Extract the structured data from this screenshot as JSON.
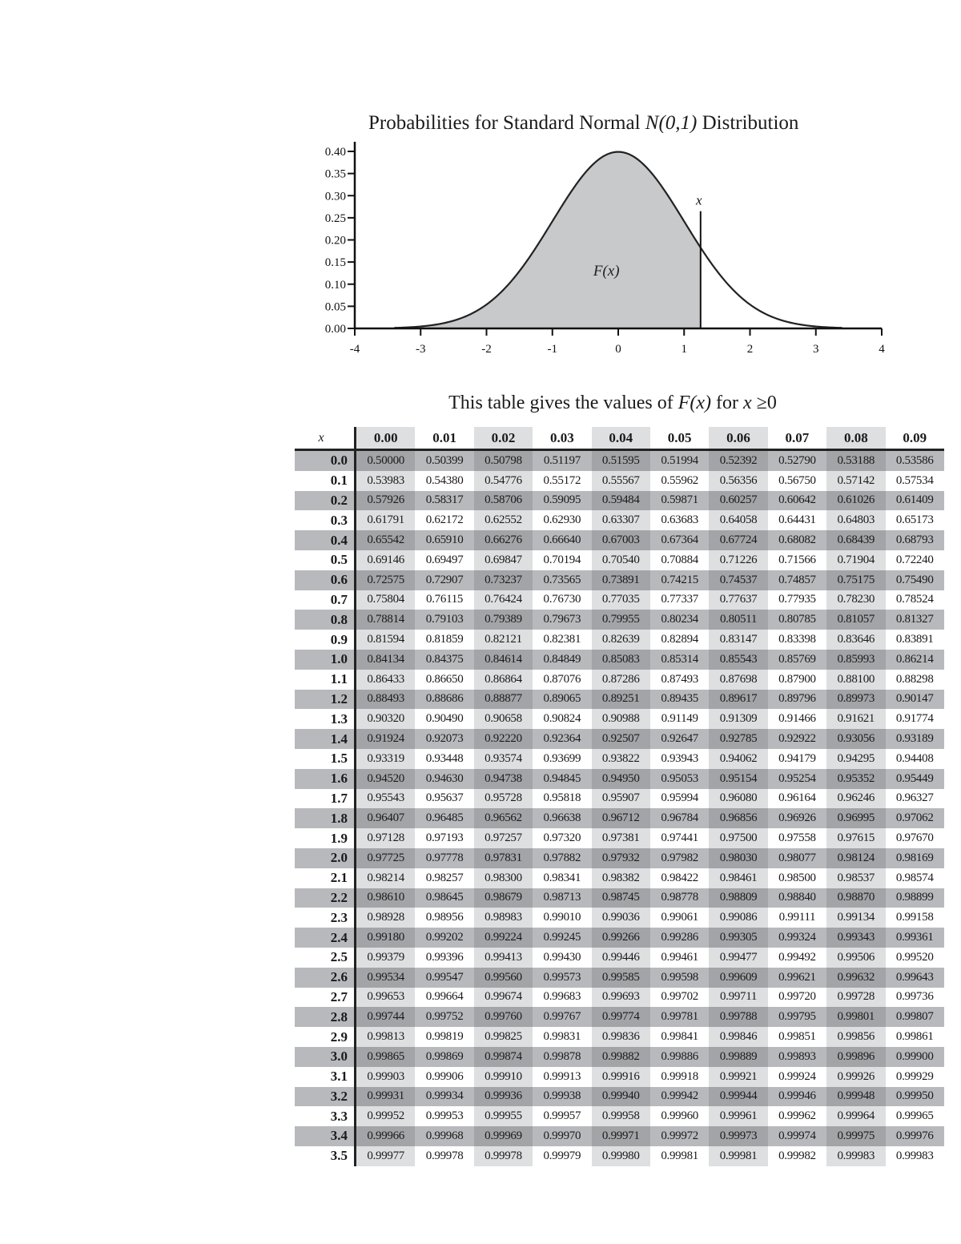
{
  "chart_data": {
    "type": "area",
    "title": "Probabilities for Standard Normal N(0,1) Distribution",
    "title_plain": "Probabilities for Standard Normal ",
    "title_italic": "N(0,1)",
    "title_suffix": " Distribution",
    "xlabel": "",
    "ylabel": "",
    "xlim": [
      -4,
      4
    ],
    "ylim": [
      0,
      0.4
    ],
    "x_ticks": [
      "-4",
      "-3",
      "-2",
      "-1",
      "0",
      "1",
      "2",
      "3",
      "4"
    ],
    "y_ticks": [
      "0.00",
      "0.05",
      "0.10",
      "0.15",
      "0.20",
      "0.25",
      "0.30",
      "0.35",
      "0.40"
    ],
    "curve": "standard normal density",
    "shaded_region": {
      "from": -4,
      "to": 1.25,
      "label": "F(x)"
    },
    "marker": {
      "x": 1.25,
      "label": "x"
    },
    "colors": {
      "fill": "#c8c9cb",
      "curve": "#222222"
    }
  },
  "table": {
    "title_prefix": "This table gives the values of ",
    "title_fx": "F(x)",
    "title_for": " for ",
    "title_x": "x",
    "title_suffix": " ≥0",
    "corner_label": "x",
    "columns": [
      "0.00",
      "0.01",
      "0.02",
      "0.03",
      "0.04",
      "0.05",
      "0.06",
      "0.07",
      "0.08",
      "0.09"
    ],
    "rows": [
      {
        "x": "0.0",
        "v": [
          "0.50000",
          "0.50399",
          "0.50798",
          "0.51197",
          "0.51595",
          "0.51994",
          "0.52392",
          "0.52790",
          "0.53188",
          "0.53586"
        ]
      },
      {
        "x": "0.1",
        "v": [
          "0.53983",
          "0.54380",
          "0.54776",
          "0.55172",
          "0.55567",
          "0.55962",
          "0.56356",
          "0.56750",
          "0.57142",
          "0.57534"
        ]
      },
      {
        "x": "0.2",
        "v": [
          "0.57926",
          "0.58317",
          "0.58706",
          "0.59095",
          "0.59484",
          "0.59871",
          "0.60257",
          "0.60642",
          "0.61026",
          "0.61409"
        ]
      },
      {
        "x": "0.3",
        "v": [
          "0.61791",
          "0.62172",
          "0.62552",
          "0.62930",
          "0.63307",
          "0.63683",
          "0.64058",
          "0.64431",
          "0.64803",
          "0.65173"
        ]
      },
      {
        "x": "0.4",
        "v": [
          "0.65542",
          "0.65910",
          "0.66276",
          "0.66640",
          "0.67003",
          "0.67364",
          "0.67724",
          "0.68082",
          "0.68439",
          "0.68793"
        ]
      },
      {
        "x": "0.5",
        "v": [
          "0.69146",
          "0.69497",
          "0.69847",
          "0.70194",
          "0.70540",
          "0.70884",
          "0.71226",
          "0.71566",
          "0.71904",
          "0.72240"
        ]
      },
      {
        "x": "0.6",
        "v": [
          "0.72575",
          "0.72907",
          "0.73237",
          "0.73565",
          "0.73891",
          "0.74215",
          "0.74537",
          "0.74857",
          "0.75175",
          "0.75490"
        ]
      },
      {
        "x": "0.7",
        "v": [
          "0.75804",
          "0.76115",
          "0.76424",
          "0.76730",
          "0.77035",
          "0.77337",
          "0.77637",
          "0.77935",
          "0.78230",
          "0.78524"
        ]
      },
      {
        "x": "0.8",
        "v": [
          "0.78814",
          "0.79103",
          "0.79389",
          "0.79673",
          "0.79955",
          "0.80234",
          "0.80511",
          "0.80785",
          "0.81057",
          "0.81327"
        ]
      },
      {
        "x": "0.9",
        "v": [
          "0.81594",
          "0.81859",
          "0.82121",
          "0.82381",
          "0.82639",
          "0.82894",
          "0.83147",
          "0.83398",
          "0.83646",
          "0.83891"
        ]
      },
      {
        "x": "1.0",
        "v": [
          "0.84134",
          "0.84375",
          "0.84614",
          "0.84849",
          "0.85083",
          "0.85314",
          "0.85543",
          "0.85769",
          "0.85993",
          "0.86214"
        ]
      },
      {
        "x": "1.1",
        "v": [
          "0.86433",
          "0.86650",
          "0.86864",
          "0.87076",
          "0.87286",
          "0.87493",
          "0.87698",
          "0.87900",
          "0.88100",
          "0.88298"
        ]
      },
      {
        "x": "1.2",
        "v": [
          "0.88493",
          "0.88686",
          "0.88877",
          "0.89065",
          "0.89251",
          "0.89435",
          "0.89617",
          "0.89796",
          "0.89973",
          "0.90147"
        ]
      },
      {
        "x": "1.3",
        "v": [
          "0.90320",
          "0.90490",
          "0.90658",
          "0.90824",
          "0.90988",
          "0.91149",
          "0.91309",
          "0.91466",
          "0.91621",
          "0.91774"
        ]
      },
      {
        "x": "1.4",
        "v": [
          "0.91924",
          "0.92073",
          "0.92220",
          "0.92364",
          "0.92507",
          "0.92647",
          "0.92785",
          "0.92922",
          "0.93056",
          "0.93189"
        ]
      },
      {
        "x": "1.5",
        "v": [
          "0.93319",
          "0.93448",
          "0.93574",
          "0.93699",
          "0.93822",
          "0.93943",
          "0.94062",
          "0.94179",
          "0.94295",
          "0.94408"
        ]
      },
      {
        "x": "1.6",
        "v": [
          "0.94520",
          "0.94630",
          "0.94738",
          "0.94845",
          "0.94950",
          "0.95053",
          "0.95154",
          "0.95254",
          "0.95352",
          "0.95449"
        ]
      },
      {
        "x": "1.7",
        "v": [
          "0.95543",
          "0.95637",
          "0.95728",
          "0.95818",
          "0.95907",
          "0.95994",
          "0.96080",
          "0.96164",
          "0.96246",
          "0.96327"
        ]
      },
      {
        "x": "1.8",
        "v": [
          "0.96407",
          "0.96485",
          "0.96562",
          "0.96638",
          "0.96712",
          "0.96784",
          "0.96856",
          "0.96926",
          "0.96995",
          "0.97062"
        ]
      },
      {
        "x": "1.9",
        "v": [
          "0.97128",
          "0.97193",
          "0.97257",
          "0.97320",
          "0.97381",
          "0.97441",
          "0.97500",
          "0.97558",
          "0.97615",
          "0.97670"
        ]
      },
      {
        "x": "2.0",
        "v": [
          "0.97725",
          "0.97778",
          "0.97831",
          "0.97882",
          "0.97932",
          "0.97982",
          "0.98030",
          "0.98077",
          "0.98124",
          "0.98169"
        ]
      },
      {
        "x": "2.1",
        "v": [
          "0.98214",
          "0.98257",
          "0.98300",
          "0.98341",
          "0.98382",
          "0.98422",
          "0.98461",
          "0.98500",
          "0.98537",
          "0.98574"
        ]
      },
      {
        "x": "2.2",
        "v": [
          "0.98610",
          "0.98645",
          "0.98679",
          "0.98713",
          "0.98745",
          "0.98778",
          "0.98809",
          "0.98840",
          "0.98870",
          "0.98899"
        ]
      },
      {
        "x": "2.3",
        "v": [
          "0.98928",
          "0.98956",
          "0.98983",
          "0.99010",
          "0.99036",
          "0.99061",
          "0.99086",
          "0.99111",
          "0.99134",
          "0.99158"
        ]
      },
      {
        "x": "2.4",
        "v": [
          "0.99180",
          "0.99202",
          "0.99224",
          "0.99245",
          "0.99266",
          "0.99286",
          "0.99305",
          "0.99324",
          "0.99343",
          "0.99361"
        ]
      },
      {
        "x": "2.5",
        "v": [
          "0.99379",
          "0.99396",
          "0.99413",
          "0.99430",
          "0.99446",
          "0.99461",
          "0.99477",
          "0.99492",
          "0.99506",
          "0.99520"
        ]
      },
      {
        "x": "2.6",
        "v": [
          "0.99534",
          "0.99547",
          "0.99560",
          "0.99573",
          "0.99585",
          "0.99598",
          "0.99609",
          "0.99621",
          "0.99632",
          "0.99643"
        ]
      },
      {
        "x": "2.7",
        "v": [
          "0.99653",
          "0.99664",
          "0.99674",
          "0.99683",
          "0.99693",
          "0.99702",
          "0.99711",
          "0.99720",
          "0.99728",
          "0.99736"
        ]
      },
      {
        "x": "2.8",
        "v": [
          "0.99744",
          "0.99752",
          "0.99760",
          "0.99767",
          "0.99774",
          "0.99781",
          "0.99788",
          "0.99795",
          "0.99801",
          "0.99807"
        ]
      },
      {
        "x": "2.9",
        "v": [
          "0.99813",
          "0.99819",
          "0.99825",
          "0.99831",
          "0.99836",
          "0.99841",
          "0.99846",
          "0.99851",
          "0.99856",
          "0.99861"
        ]
      },
      {
        "x": "3.0",
        "v": [
          "0.99865",
          "0.99869",
          "0.99874",
          "0.99878",
          "0.99882",
          "0.99886",
          "0.99889",
          "0.99893",
          "0.99896",
          "0.99900"
        ]
      },
      {
        "x": "3.1",
        "v": [
          "0.99903",
          "0.99906",
          "0.99910",
          "0.99913",
          "0.99916",
          "0.99918",
          "0.99921",
          "0.99924",
          "0.99926",
          "0.99929"
        ]
      },
      {
        "x": "3.2",
        "v": [
          "0.99931",
          "0.99934",
          "0.99936",
          "0.99938",
          "0.99940",
          "0.99942",
          "0.99944",
          "0.99946",
          "0.99948",
          "0.99950"
        ]
      },
      {
        "x": "3.3",
        "v": [
          "0.99952",
          "0.99953",
          "0.99955",
          "0.99957",
          "0.99958",
          "0.99960",
          "0.99961",
          "0.99962",
          "0.99964",
          "0.99965"
        ]
      },
      {
        "x": "3.4",
        "v": [
          "0.99966",
          "0.99968",
          "0.99969",
          "0.99970",
          "0.99971",
          "0.99972",
          "0.99973",
          "0.99974",
          "0.99975",
          "0.99976"
        ]
      },
      {
        "x": "3.5",
        "v": [
          "0.99977",
          "0.99978",
          "0.99978",
          "0.99979",
          "0.99980",
          "0.99981",
          "0.99981",
          "0.99982",
          "0.99983",
          "0.99983"
        ]
      }
    ],
    "colors": {
      "header_shade": "#dedfe1",
      "row_shade": "#b8b9bc",
      "row_col_shade": "#a3a4a7",
      "white": "#ffffff",
      "rule": "#222222"
    }
  }
}
